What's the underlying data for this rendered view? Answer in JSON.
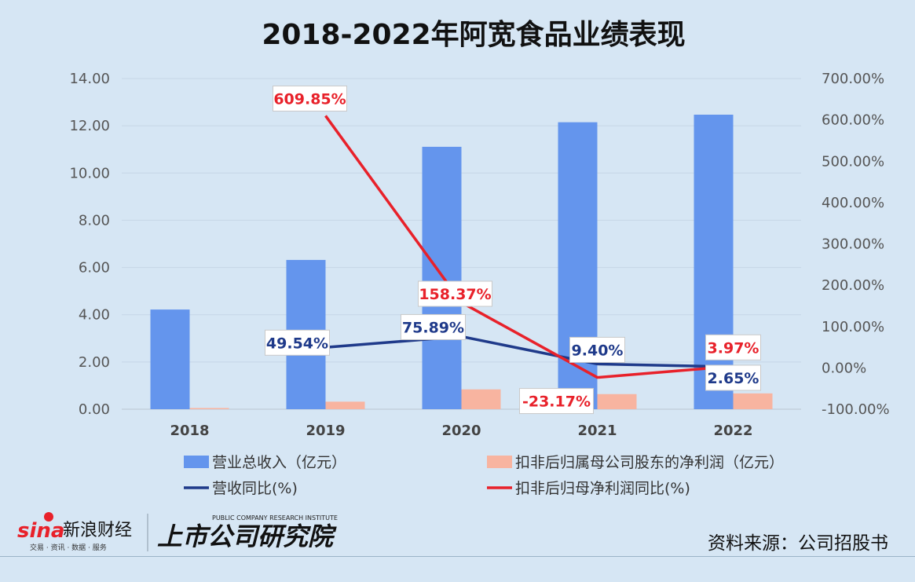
{
  "chart_data": {
    "type": "bar+line",
    "title": "2018-2022年阿宽食品业绩表现",
    "categories": [
      "2018",
      "2019",
      "2020",
      "2021",
      "2022"
    ],
    "left_axis": {
      "min": 0,
      "max": 14,
      "step": 2,
      "ticks": [
        "0.00",
        "2.00",
        "4.00",
        "6.00",
        "8.00",
        "10.00",
        "12.00",
        "14.00"
      ]
    },
    "right_axis": {
      "min": -100,
      "max": 700,
      "step": 100,
      "ticks": [
        "-100.00%",
        "0.00%",
        "100.00%",
        "200.00%",
        "300.00%",
        "400.00%",
        "500.00%",
        "600.00%",
        "700.00%"
      ]
    },
    "series": [
      {
        "name": "营业总收入（亿元）",
        "type": "bar",
        "axis": "left",
        "color": "#6495ed",
        "values": [
          4.22,
          6.32,
          11.11,
          12.15,
          12.47
        ]
      },
      {
        "name": "扣非后归属母公司股东的净利润（亿元）",
        "type": "bar",
        "axis": "left",
        "color": "#f8b4a0",
        "values": [
          0.05,
          0.32,
          0.84,
          0.64,
          0.67
        ]
      },
      {
        "name": "营收同比(%)",
        "type": "line",
        "axis": "right",
        "color": "#1f3a8a",
        "values": [
          null,
          49.54,
          75.89,
          9.4,
          2.65
        ],
        "labels": [
          "",
          "49.54%",
          "75.89%",
          "9.40%",
          "2.65%"
        ]
      },
      {
        "name": "扣非后归母净利润同比(%)",
        "type": "line",
        "axis": "right",
        "color": "#e8212a",
        "values": [
          null,
          609.85,
          158.37,
          -23.17,
          3.97
        ],
        "labels": [
          "",
          "609.85%",
          "158.37%",
          "-23.17%",
          "3.97%"
        ]
      }
    ],
    "legend": "bottom"
  },
  "footer": {
    "source": "资料来源：公司招股书",
    "logo_sina": "sina",
    "logo_sina_cn": "新浪财经",
    "logo_sina_sub": "交易 · 资讯 · 数据 · 服务",
    "logo_institute": "上市公司研究院",
    "logo_institute_en": "PUBLIC COMPANY RESEARCH INSTITUTE"
  }
}
